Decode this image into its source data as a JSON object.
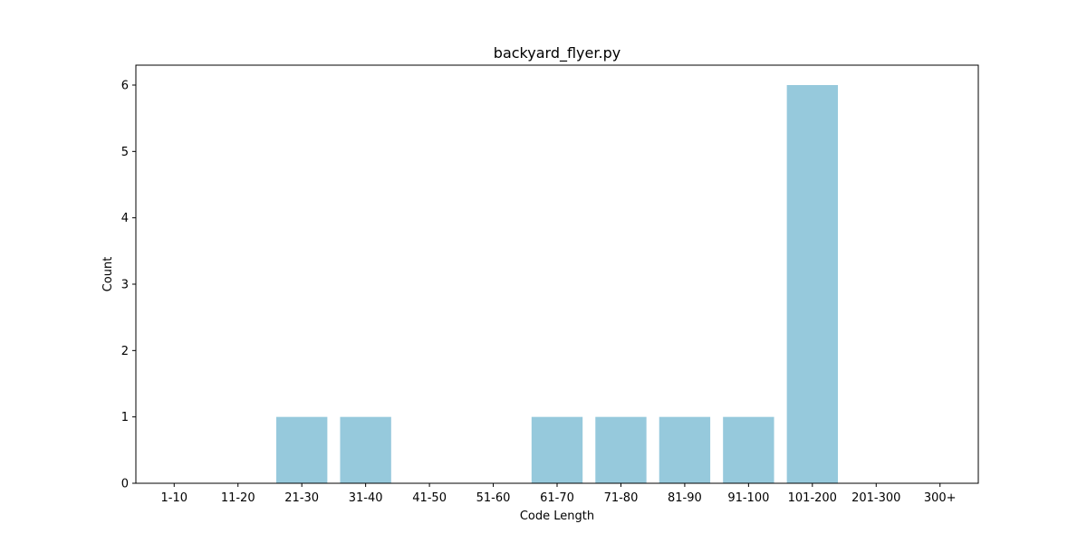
{
  "chart_data": {
    "type": "bar",
    "title": "backyard_flyer.py",
    "xlabel": "Code Length",
    "ylabel": "Count",
    "categories": [
      "1-10",
      "11-20",
      "21-30",
      "31-40",
      "41-50",
      "51-60",
      "61-70",
      "71-80",
      "81-90",
      "91-100",
      "101-200",
      "201-300",
      "300+"
    ],
    "values": [
      0,
      0,
      1,
      1,
      0,
      0,
      1,
      1,
      1,
      1,
      6,
      0,
      0
    ],
    "ylim": [
      0,
      6.3
    ],
    "yticks": [
      0,
      1,
      2,
      3,
      4,
      5,
      6
    ],
    "grid": false,
    "legend": false,
    "bar_color": "#96c9dc"
  }
}
